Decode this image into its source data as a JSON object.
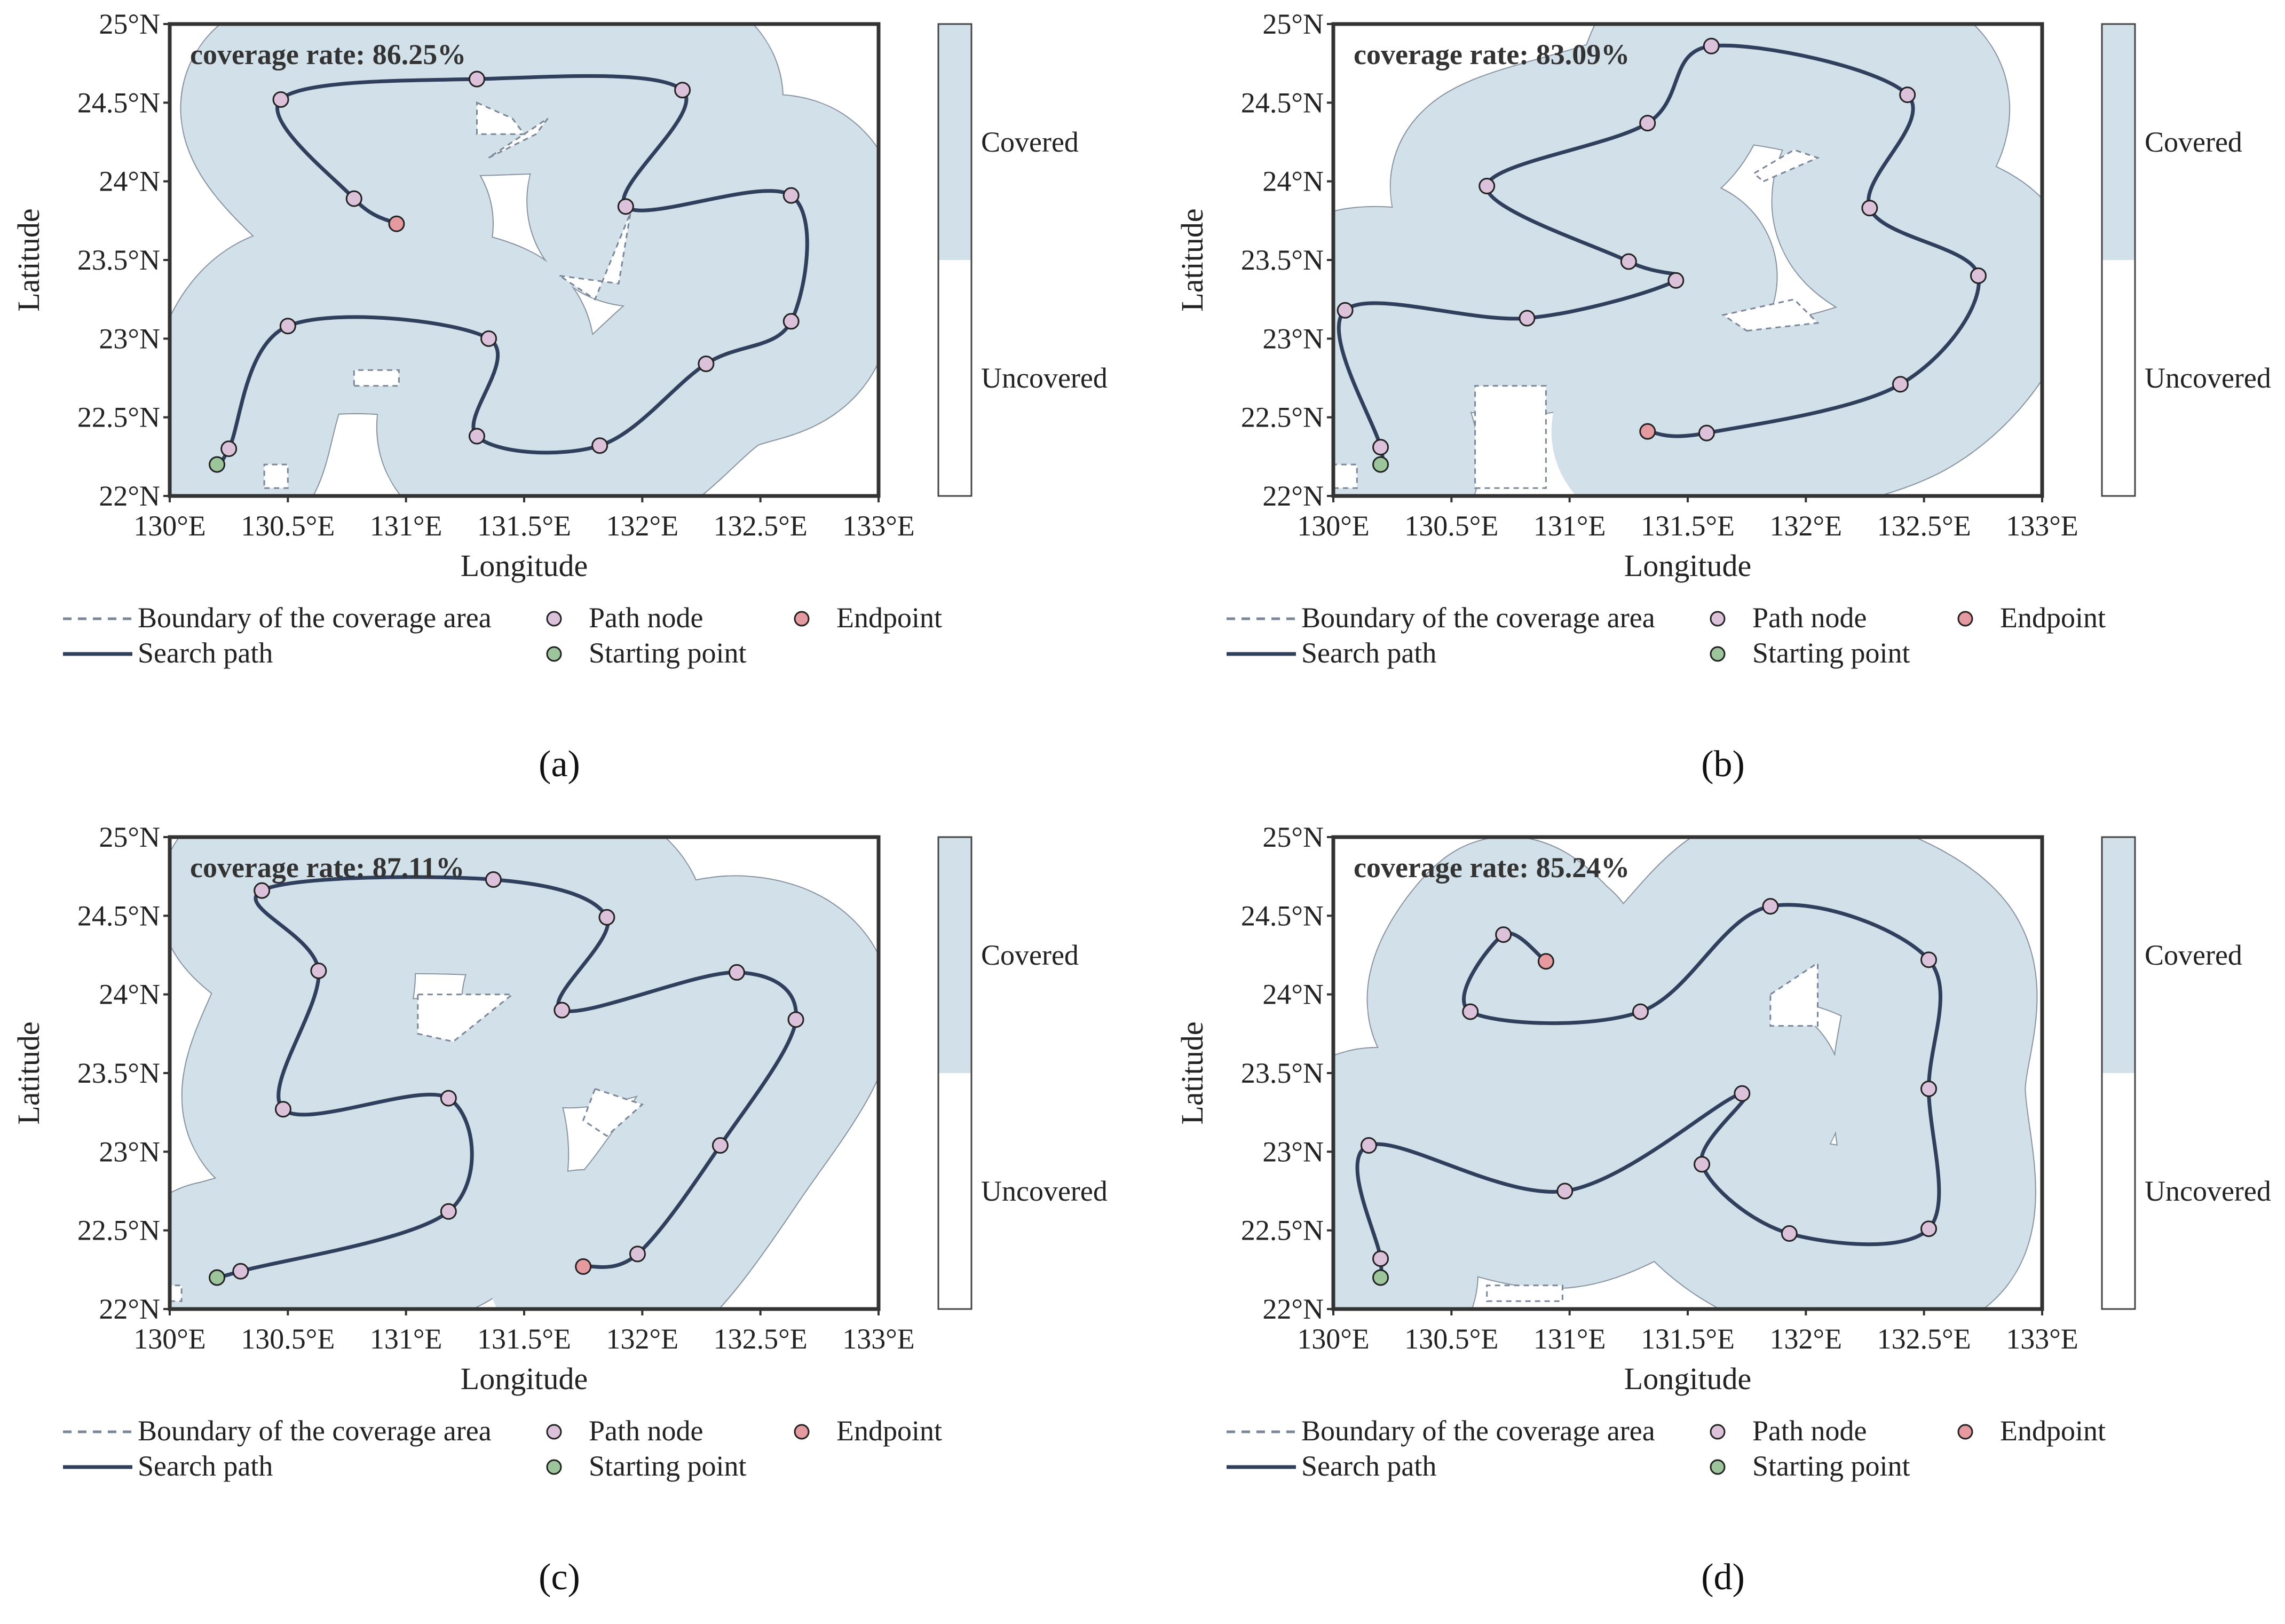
{
  "colors": {
    "covered": "#d2e0ea",
    "boundary": "#7b8798",
    "path": "#2f3f5c",
    "node": "#dcc1da",
    "endpoint": "#e59aa0",
    "start": "#9dc59b",
    "frame": "#333333"
  },
  "legend": {
    "boundary": "Boundary of the coverage area",
    "path_node": "Path node",
    "endpoint": "Endpoint",
    "search_path": "Search path",
    "starting_point": "Starting point"
  },
  "colorbar": {
    "covered": "Covered",
    "uncovered": "Uncovered"
  },
  "chart_data": [
    {
      "type": "scatter",
      "panel": "(a)",
      "coverage_label": "coverage rate: 86.25%",
      "xlabel": "Longitude",
      "ylabel": "Latitude",
      "xlim": [
        130,
        133
      ],
      "ylim": [
        22,
        25
      ],
      "xticks": [
        "130°E",
        "130.5°E",
        "131°E",
        "131.5°E",
        "132°E",
        "132.5°E",
        "133°E"
      ],
      "yticks": [
        "22°N",
        "22.5°N",
        "23°N",
        "23.5°N",
        "24°N",
        "24.5°N",
        "25°N"
      ],
      "start": [
        130.2,
        22.2
      ],
      "nodes": [
        [
          130.25,
          22.3
        ],
        [
          130.5,
          23.08
        ],
        [
          131.35,
          23.0
        ],
        [
          131.3,
          22.38
        ],
        [
          131.82,
          22.32
        ],
        [
          132.27,
          22.84
        ],
        [
          132.63,
          23.11
        ],
        [
          132.63,
          23.91
        ],
        [
          131.93,
          23.84
        ],
        [
          132.17,
          24.58
        ],
        [
          131.3,
          24.65
        ],
        [
          130.47,
          24.52
        ],
        [
          130.78,
          23.89
        ]
      ],
      "endpoint": [
        130.96,
        23.73
      ],
      "holes": [
        [
          [
            130.4,
            22.05
          ],
          [
            130.5,
            22.05
          ],
          [
            130.5,
            22.2
          ],
          [
            130.4,
            22.2
          ]
        ],
        [
          [
            130.78,
            22.7
          ],
          [
            130.97,
            22.7
          ],
          [
            130.97,
            22.8
          ],
          [
            130.78,
            22.8
          ]
        ],
        [
          [
            131.35,
            24.15
          ],
          [
            131.55,
            24.3
          ],
          [
            131.6,
            24.4
          ],
          [
            131.45,
            24.25
          ]
        ],
        [
          [
            131.65,
            23.4
          ],
          [
            131.9,
            23.35
          ],
          [
            131.95,
            23.8
          ],
          [
            131.8,
            23.25
          ]
        ],
        [
          [
            131.3,
            24.5
          ],
          [
            131.45,
            24.4
          ],
          [
            131.5,
            24.3
          ],
          [
            131.3,
            24.3
          ]
        ]
      ]
    },
    {
      "type": "scatter",
      "panel": "(b)",
      "coverage_label": "coverage rate: 83.09%",
      "xlabel": "Longitude",
      "ylabel": "Latitude",
      "xlim": [
        130,
        133
      ],
      "ylim": [
        22,
        25
      ],
      "xticks": [
        "130°E",
        "130.5°E",
        "131°E",
        "131.5°E",
        "132°E",
        "132.5°E",
        "133°E"
      ],
      "yticks": [
        "22°N",
        "22.5°N",
        "23°N",
        "23.5°N",
        "24°N",
        "24.5°N",
        "25°N"
      ],
      "start": [
        130.2,
        22.2
      ],
      "nodes": [
        [
          130.2,
          22.31
        ],
        [
          130.05,
          23.18
        ],
        [
          130.82,
          23.13
        ],
        [
          131.45,
          23.37
        ],
        [
          131.25,
          23.49
        ],
        [
          130.65,
          23.97
        ],
        [
          131.33,
          24.37
        ],
        [
          131.6,
          24.86
        ],
        [
          132.43,
          24.55
        ],
        [
          132.27,
          23.83
        ],
        [
          132.73,
          23.4
        ],
        [
          132.4,
          22.71
        ],
        [
          131.58,
          22.4
        ]
      ],
      "endpoint": [
        131.33,
        22.41
      ],
      "holes": [
        [
          [
            130.6,
            22.05
          ],
          [
            130.9,
            22.05
          ],
          [
            130.9,
            22.7
          ],
          [
            130.6,
            22.7
          ]
        ],
        [
          [
            131.75,
            23.05
          ],
          [
            132.05,
            23.1
          ],
          [
            131.95,
            23.25
          ],
          [
            131.65,
            23.15
          ]
        ],
        [
          [
            131.82,
            24.0
          ],
          [
            132.05,
            24.15
          ],
          [
            131.95,
            24.2
          ],
          [
            131.78,
            24.05
          ]
        ],
        [
          [
            130.0,
            22.05
          ],
          [
            130.1,
            22.05
          ],
          [
            130.1,
            22.2
          ],
          [
            130.0,
            22.2
          ]
        ]
      ]
    },
    {
      "type": "scatter",
      "panel": "(c)",
      "coverage_label": "coverage rate: 87.11%",
      "xlabel": "Longitude",
      "ylabel": "Latitude",
      "xlim": [
        130,
        133
      ],
      "ylim": [
        22,
        25
      ],
      "xticks": [
        "130°E",
        "130.5°E",
        "131°E",
        "131.5°E",
        "132°E",
        "132.5°E",
        "133°E"
      ],
      "yticks": [
        "22°N",
        "22.5°N",
        "23°N",
        "23.5°N",
        "24°N",
        "24.5°N",
        "25°N"
      ],
      "start": [
        130.2,
        22.2
      ],
      "nodes": [
        [
          130.3,
          22.24
        ],
        [
          131.18,
          22.62
        ],
        [
          131.18,
          23.34
        ],
        [
          130.48,
          23.27
        ],
        [
          130.63,
          24.15
        ],
        [
          130.39,
          24.66
        ],
        [
          131.37,
          24.73
        ],
        [
          131.85,
          24.49
        ],
        [
          131.66,
          23.9
        ],
        [
          132.4,
          24.14
        ],
        [
          132.65,
          23.84
        ],
        [
          132.33,
          23.04
        ],
        [
          131.98,
          22.35
        ]
      ],
      "endpoint": [
        131.75,
        22.27
      ],
      "holes": [
        [
          [
            131.05,
            24.0
          ],
          [
            131.45,
            24.0
          ],
          [
            131.2,
            23.7
          ],
          [
            131.05,
            23.75
          ]
        ],
        [
          [
            131.8,
            23.4
          ],
          [
            132.0,
            23.3
          ],
          [
            131.85,
            23.1
          ],
          [
            131.75,
            23.2
          ]
        ],
        [
          [
            130.0,
            22.05
          ],
          [
            130.05,
            22.05
          ],
          [
            130.05,
            22.15
          ],
          [
            130.0,
            22.15
          ]
        ]
      ]
    },
    {
      "type": "scatter",
      "panel": "(d)",
      "coverage_label": "coverage rate: 85.24%",
      "xlabel": "Longitude",
      "ylabel": "Latitude",
      "xlim": [
        130,
        133
      ],
      "ylim": [
        22,
        25
      ],
      "xticks": [
        "130°E",
        "130.5°E",
        "131°E",
        "131.5°E",
        "132°E",
        "132.5°E",
        "133°E"
      ],
      "yticks": [
        "22°N",
        "22.5°N",
        "23°N",
        "23.5°N",
        "24°N",
        "24.5°N",
        "25°N"
      ],
      "start": [
        130.2,
        22.2
      ],
      "nodes": [
        [
          130.2,
          22.32
        ],
        [
          130.15,
          23.04
        ],
        [
          130.98,
          22.75
        ],
        [
          131.73,
          23.37
        ],
        [
          131.56,
          22.92
        ],
        [
          131.93,
          22.48
        ],
        [
          132.52,
          22.51
        ],
        [
          132.52,
          23.4
        ],
        [
          132.52,
          24.22
        ],
        [
          131.85,
          24.56
        ],
        [
          131.3,
          23.89
        ],
        [
          130.58,
          23.89
        ],
        [
          130.72,
          24.38
        ]
      ],
      "endpoint": [
        130.9,
        24.21
      ],
      "holes": [
        [
          [
            131.85,
            24.0
          ],
          [
            132.05,
            24.2
          ],
          [
            132.05,
            23.8
          ],
          [
            131.85,
            23.8
          ]
        ],
        [
          [
            130.65,
            22.05
          ],
          [
            130.97,
            22.05
          ],
          [
            130.97,
            22.15
          ],
          [
            130.65,
            22.15
          ]
        ]
      ]
    }
  ]
}
